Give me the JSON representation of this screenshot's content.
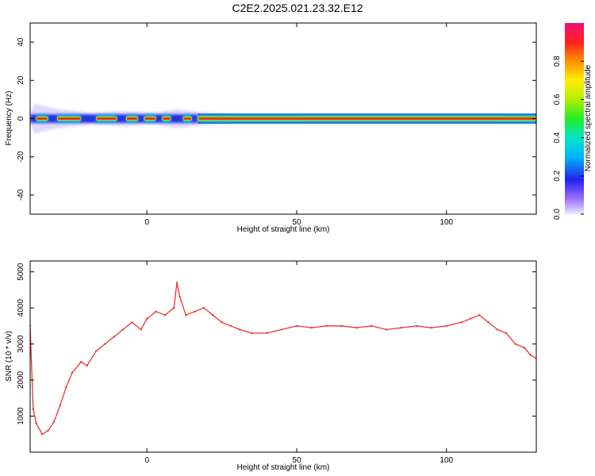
{
  "title": "C2E2.2025.021.23.32.E12",
  "chart_data": [
    {
      "type": "heatmap",
      "xlabel": "Height of straight line (km)",
      "ylabel": "Frequency (Hz)",
      "xlim": [
        -39,
        130
      ],
      "ylim": [
        -50,
        50
      ],
      "x_ticks": [
        0,
        50,
        100
      ],
      "y_ticks": [
        40,
        20,
        0,
        -20,
        -40
      ],
      "colorbar": {
        "label": "Normalized spectral amplitude",
        "range": [
          0,
          1
        ],
        "ticks": [
          0.0,
          0.2,
          0.4,
          0.6,
          0.8
        ]
      },
      "ridge": {
        "center_frequency_hz": 0,
        "continuous_from_km": 17,
        "continuous_to_km": 130,
        "broken_from_km": -39,
        "broken_to_km": 17,
        "halo_maxima": [
          {
            "x_km": -38,
            "half_width_hz": 8
          },
          {
            "x_km": -30,
            "half_width_hz": 5
          },
          {
            "x_km": -18,
            "half_width_hz": 3
          },
          {
            "x_km": -8,
            "half_width_hz": 4
          },
          {
            "x_km": 2,
            "half_width_hz": 3
          },
          {
            "x_km": 10,
            "half_width_hz": 5
          },
          {
            "x_km": 14,
            "half_width_hz": 4
          },
          {
            "x_km": 30,
            "half_width_hz": 2
          },
          {
            "x_km": 130,
            "half_width_hz": 2
          }
        ],
        "strong_segments": [
          {
            "from_km": -37,
            "to_km": -33
          },
          {
            "from_km": -30,
            "to_km": -22
          },
          {
            "from_km": -17,
            "to_km": -10
          },
          {
            "from_km": -7,
            "to_km": -3
          },
          {
            "from_km": -1,
            "to_km": 3
          },
          {
            "from_km": 5,
            "to_km": 8
          },
          {
            "from_km": 12,
            "to_km": 15
          },
          {
            "from_km": 17,
            "to_km": 130
          }
        ]
      }
    },
    {
      "type": "line",
      "xlabel": "Height of straight line (km)",
      "ylabel": "SNR (10 * v/v)",
      "xlim": [
        -39,
        130
      ],
      "ylim": [
        0,
        5300
      ],
      "x_ticks": [
        0,
        50,
        100
      ],
      "y_ticks": [
        1000,
        2000,
        3000,
        4000,
        5000
      ],
      "series": [
        {
          "color": "#ee3333",
          "x": [
            -39,
            -38,
            -37,
            -35,
            -33,
            -31,
            -29,
            -27,
            -25,
            -22,
            -20,
            -17,
            -14,
            -11,
            -8,
            -5,
            -2,
            0,
            3,
            6,
            9,
            10,
            11,
            13,
            16,
            19,
            22,
            25,
            28,
            31,
            35,
            40,
            45,
            50,
            55,
            60,
            65,
            70,
            75,
            80,
            85,
            90,
            95,
            100,
            105,
            108,
            111,
            114,
            117,
            120,
            123,
            126,
            128,
            130
          ],
          "values": [
            3500,
            1200,
            800,
            500,
            600,
            850,
            1300,
            1800,
            2200,
            2500,
            2400,
            2800,
            3000,
            3200,
            3400,
            3600,
            3400,
            3700,
            3900,
            3800,
            4000,
            4700,
            4300,
            3800,
            3900,
            4000,
            3800,
            3600,
            3500,
            3400,
            3300,
            3300,
            3400,
            3500,
            3450,
            3500,
            3500,
            3450,
            3500,
            3400,
            3450,
            3500,
            3450,
            3500,
            3600,
            3700,
            3800,
            3600,
            3400,
            3300,
            3000,
            2900,
            2700,
            2600
          ]
        }
      ]
    }
  ]
}
